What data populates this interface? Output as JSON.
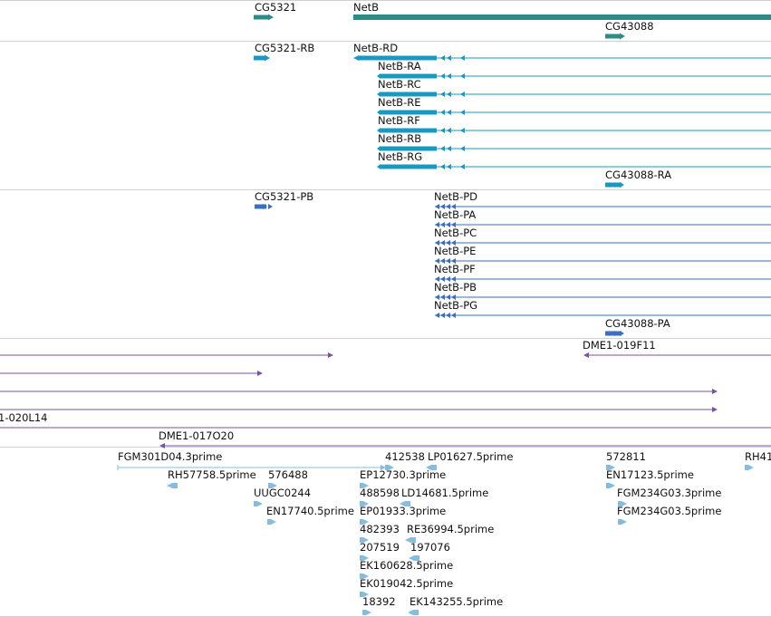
{
  "colors": {
    "gene": "#2f8b88",
    "transcript": "#1799c1",
    "protein": "#3a6fc4",
    "clone": "#7a52a0",
    "est": "#86bddf",
    "divider": "#cfcfcf"
  },
  "tracks": {
    "genes": {
      "items": [
        {
          "id": "gene-cg5321",
          "label": "CG5321",
          "strand": "+"
        },
        {
          "id": "gene-netb",
          "label": "NetB",
          "strand": "+"
        },
        {
          "id": "gene-cg43088",
          "label": "CG43088",
          "strand": "+"
        }
      ]
    },
    "transcripts": {
      "items": [
        {
          "id": "tx-cg5321-rb",
          "label": "CG5321-RB",
          "strand": "+"
        },
        {
          "id": "tx-netb-rd",
          "label": "NetB-RD",
          "strand": "-"
        },
        {
          "id": "tx-netb-ra",
          "label": "NetB-RA",
          "strand": "-"
        },
        {
          "id": "tx-netb-rc",
          "label": "NetB-RC",
          "strand": "-"
        },
        {
          "id": "tx-netb-re",
          "label": "NetB-RE",
          "strand": "-"
        },
        {
          "id": "tx-netb-rf",
          "label": "NetB-RF",
          "strand": "-"
        },
        {
          "id": "tx-netb-rb",
          "label": "NetB-RB",
          "strand": "-"
        },
        {
          "id": "tx-netb-rg",
          "label": "NetB-RG",
          "strand": "-"
        },
        {
          "id": "tx-cg43088-ra",
          "label": "CG43088-RA",
          "strand": "+"
        }
      ]
    },
    "proteins": {
      "items": [
        {
          "id": "pp-cg5321-pb",
          "label": "CG5321-PB",
          "strand": "+"
        },
        {
          "id": "pp-netb-pd",
          "label": "NetB-PD",
          "strand": "-"
        },
        {
          "id": "pp-netb-pa",
          "label": "NetB-PA",
          "strand": "-"
        },
        {
          "id": "pp-netb-pc",
          "label": "NetB-PC",
          "strand": "-"
        },
        {
          "id": "pp-netb-pe",
          "label": "NetB-PE",
          "strand": "-"
        },
        {
          "id": "pp-netb-pf",
          "label": "NetB-PF",
          "strand": "-"
        },
        {
          "id": "pp-netb-pb",
          "label": "NetB-PB",
          "strand": "-"
        },
        {
          "id": "pp-netb-pg",
          "label": "NetB-PG",
          "strand": "-"
        },
        {
          "id": "pp-cg43088-pa",
          "label": "CG43088-PA",
          "strand": "+"
        }
      ]
    },
    "clones": {
      "items": [
        {
          "id": "clone-1",
          "label": "",
          "strand": "+"
        },
        {
          "id": "clone-2",
          "label": "",
          "strand": "+"
        },
        {
          "id": "clone-3",
          "label": "",
          "strand": "+"
        },
        {
          "id": "clone-4",
          "label": "",
          "strand": "+"
        },
        {
          "id": "clone-020l14",
          "label": "1-020L14",
          "strand": "+"
        },
        {
          "id": "clone-019f11",
          "label": "DME1-019F11",
          "strand": "-"
        },
        {
          "id": "clone-017o20",
          "label": "DME1-017O20",
          "strand": "-"
        }
      ]
    },
    "ests": {
      "items": [
        {
          "id": "est-fgm301d04",
          "label": "FGM301D04.3prime",
          "strand": "+"
        },
        {
          "id": "est-412538",
          "label": "412538",
          "strand": "+"
        },
        {
          "id": "est-lp01627",
          "label": "LP01627.5prime",
          "strand": "-"
        },
        {
          "id": "est-572811",
          "label": "572811",
          "strand": "+"
        },
        {
          "id": "est-rh41",
          "label": "RH41",
          "strand": "+"
        },
        {
          "id": "est-rh57758",
          "label": "RH57758.5prime",
          "strand": "-"
        },
        {
          "id": "est-576488",
          "label": "576488",
          "strand": "+"
        },
        {
          "id": "est-ep12730",
          "label": "EP12730.3prime",
          "strand": "+"
        },
        {
          "id": "est-en17123",
          "label": "EN17123.5prime",
          "strand": "+"
        },
        {
          "id": "est-uugc0244",
          "label": "UUGC0244",
          "strand": "+"
        },
        {
          "id": "est-488598",
          "label": "488598",
          "strand": "+"
        },
        {
          "id": "est-ld14681",
          "label": "LD14681.5prime",
          "strand": "-"
        },
        {
          "id": "est-fgm234g03-3",
          "label": "FGM234G03.3prime",
          "strand": "+"
        },
        {
          "id": "est-en17740",
          "label": "EN17740.5prime",
          "strand": "+"
        },
        {
          "id": "est-ep01933",
          "label": "EP01933.3prime",
          "strand": "+"
        },
        {
          "id": "est-fgm234g03-5",
          "label": "FGM234G03.5prime",
          "strand": "+"
        },
        {
          "id": "est-482393",
          "label": "482393",
          "strand": "+"
        },
        {
          "id": "est-re36994",
          "label": "RE36994.5prime",
          "strand": "-"
        },
        {
          "id": "est-207519",
          "label": "207519",
          "strand": "+"
        },
        {
          "id": "est-197076",
          "label": "197076",
          "strand": "-"
        },
        {
          "id": "est-ek160628",
          "label": "EK160628.5prime",
          "strand": "+"
        },
        {
          "id": "est-ek019042",
          "label": "EK019042.5prime",
          "strand": "+"
        },
        {
          "id": "est-18392",
          "label": "18392",
          "strand": "+"
        },
        {
          "id": "est-ek143255",
          "label": "EK143255.5prime",
          "strand": "-"
        }
      ]
    }
  }
}
